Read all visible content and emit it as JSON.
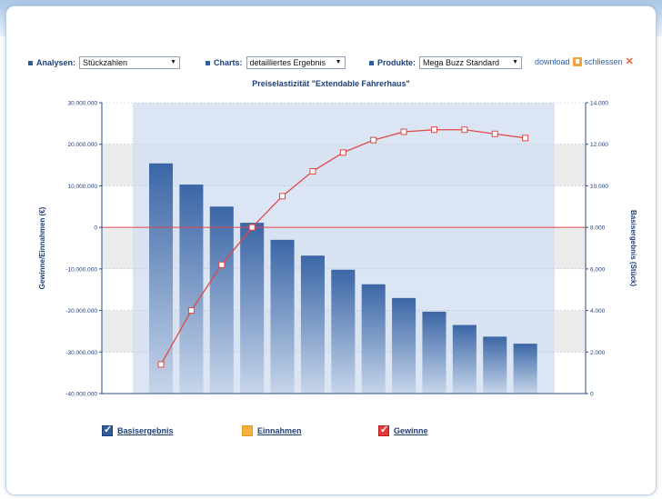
{
  "controls": {
    "analysen": {
      "label": "Analysen:",
      "value": "Stückzahlen"
    },
    "charts": {
      "label": "Charts:",
      "value": "detailliertes Ergebnis"
    },
    "produkte": {
      "label": "Produkte:",
      "value": "Mega Buzz Standard"
    },
    "download_label": "download",
    "close_label": "schliessen",
    "close_icon": "✕"
  },
  "colors": {
    "bar": "#3b66a6",
    "line": "#e04848",
    "plot_bg": "#d6e1f1",
    "band": "#ebebeb"
  },
  "legend": [
    {
      "label": "Basisergebnis",
      "checked": true,
      "color": "#2f5d9a"
    },
    {
      "label": "Einnahmen",
      "checked": false,
      "color": "#f5b040"
    },
    {
      "label": "Gewinne",
      "checked": true,
      "color": "#e23a3a"
    }
  ],
  "chart_data": {
    "type": "bar",
    "title": "Preiselastizität \"Extendable Fahrerhaus\"",
    "ylabel": "Gewinne/Einnahmen (€)",
    "y2label": "Basisergebnis (Stück)",
    "ylim": [
      -40000000,
      30000000
    ],
    "y2lim": [
      0,
      14000
    ],
    "yticks": [
      "30.000.000",
      "20.000.000",
      "10.000.000",
      "0",
      "-10.000.000",
      "-20.000.000",
      "-30.000.000",
      "-40.000.000"
    ],
    "y2ticks": [
      "14.000",
      "12.000",
      "10.000",
      "8.000",
      "6.000",
      "4.000",
      "2.000",
      "0"
    ],
    "grid": true,
    "series": [
      {
        "name": "Basisergebnis",
        "type": "bar",
        "axis": "left",
        "values": [
          15400000,
          10300000,
          5000000,
          1100000,
          -3000000,
          -6800000,
          -10200000,
          -13700000,
          -17000000,
          -20300000,
          -23500000,
          -26300000,
          -28000000
        ]
      },
      {
        "name": "Gewinne",
        "type": "line",
        "axis": "right",
        "values": [
          1400,
          4000,
          6200,
          8000,
          9500,
          10700,
          11600,
          12200,
          12600,
          12700,
          12700,
          12500,
          12300
        ]
      }
    ]
  }
}
